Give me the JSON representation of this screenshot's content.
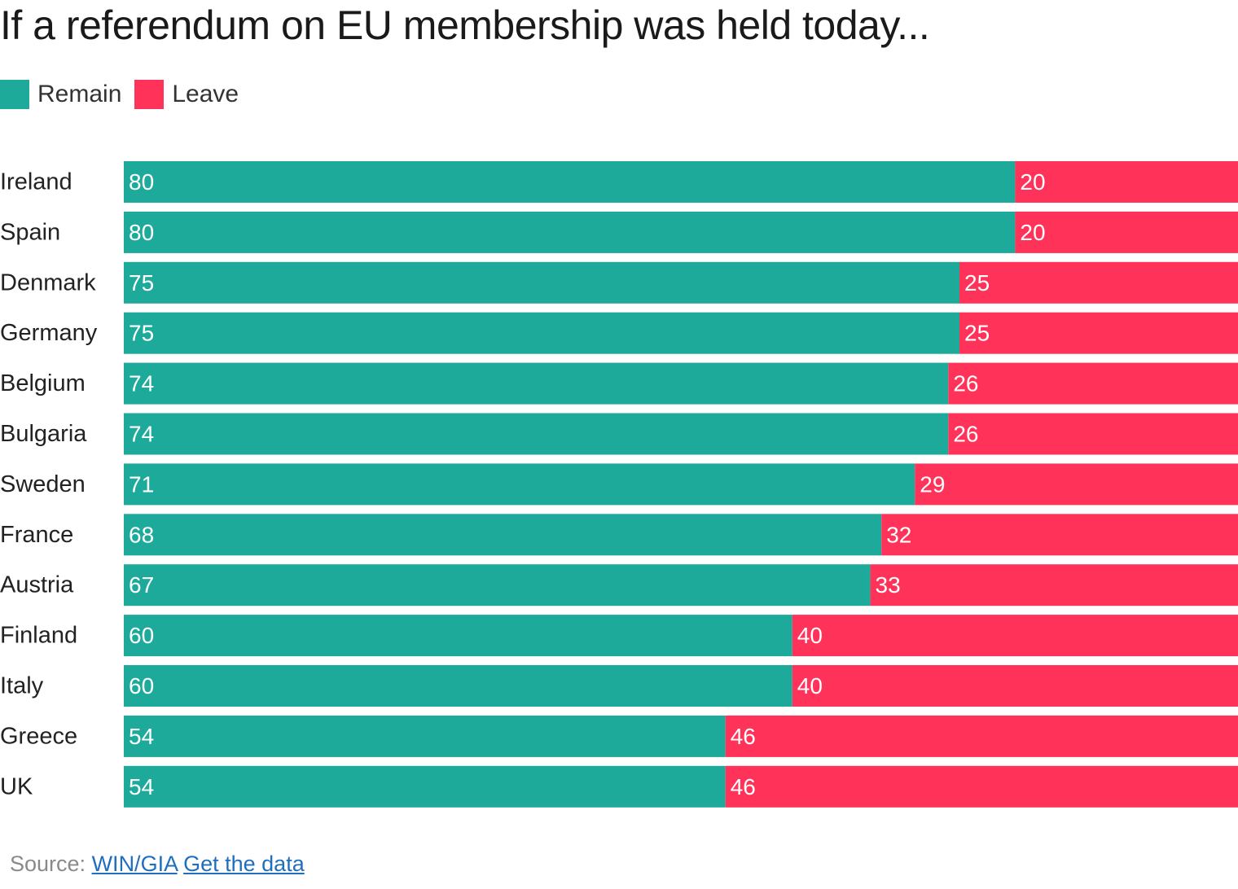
{
  "colors": {
    "remain": "#1daa9a",
    "leave": "#ff3259",
    "label_text": "#222222",
    "value_text": "#ffffff"
  },
  "chart_data": {
    "type": "bar",
    "orientation": "horizontal",
    "stacked": true,
    "title": "If a referendum on EU membership was held today...",
    "categories": [
      "Ireland",
      "Spain",
      "Denmark",
      "Germany",
      "Belgium",
      "Bulgaria",
      "Sweden",
      "France",
      "Austria",
      "Finland",
      "Italy",
      "Greece",
      "UK"
    ],
    "series": [
      {
        "name": "Remain",
        "values": [
          80,
          80,
          75,
          75,
          74,
          74,
          71,
          68,
          67,
          60,
          60,
          54,
          54
        ]
      },
      {
        "name": "Leave",
        "values": [
          20,
          20,
          25,
          25,
          26,
          26,
          29,
          32,
          33,
          40,
          40,
          46,
          46
        ]
      }
    ],
    "xlim": [
      0,
      100
    ],
    "grid": false,
    "legend_position": "top-left"
  },
  "source": {
    "prefix": "Source:",
    "link_label": "WIN/GIA",
    "get_data_label": "Get the data"
  }
}
